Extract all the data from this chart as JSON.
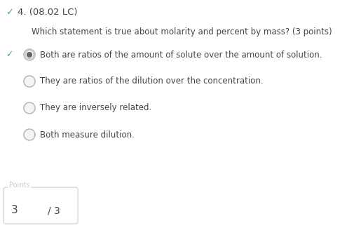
{
  "title_check": "✓",
  "title_text": "4. (08.02 LC)",
  "question": "Which statement is true about molarity and percent by mass? (3 points)",
  "options": [
    "Both are ratios of the amount of solute over the amount of solution.",
    "They are ratios of the dilution over the concentration.",
    "They are inversely related.",
    "Both measure dilution."
  ],
  "correct_index": 0,
  "check_color": "#5aaa5a",
  "title_color": "#444444",
  "question_color": "#444444",
  "option_color": "#444444",
  "radio_outer_color": "#bbbbbb",
  "radio_selected_inner": "#666666",
  "background_color": "#ffffff",
  "points_label": "Points",
  "points_value": "3",
  "points_total": "/ 3",
  "points_box_color": "#cccccc"
}
